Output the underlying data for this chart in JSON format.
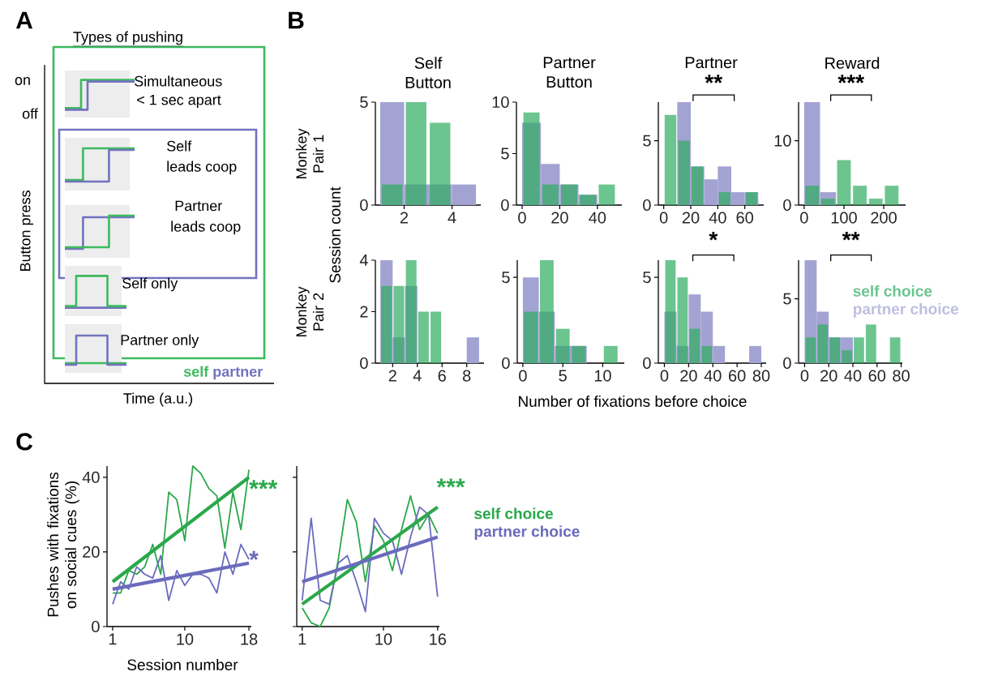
{
  "chart_data": [
    {
      "type": "other",
      "title": "Types of pushing",
      "xlabel": "Time (a.u.)",
      "ylabel": "Button press",
      "series": [
        {
          "name": "self",
          "color": "#3dba5e"
        },
        {
          "name": "partner",
          "color": "#7272c0"
        }
      ],
      "annotations": [
        "A",
        "on",
        "off",
        "Simultaneous",
        "< 1 sec apart",
        "Self",
        "leads coop",
        "Partner",
        "leads coop",
        "Self only",
        "Partner only"
      ]
    },
    {
      "type": "histogram",
      "title": "Self Button",
      "bins": [
        1,
        2,
        3,
        4,
        5
      ],
      "xlim": [
        0.8,
        5.2
      ],
      "ylim": [
        0,
        5
      ],
      "xticks": [
        2,
        4
      ],
      "yticks": [
        0,
        5
      ],
      "series": [
        {
          "color": "#6cc58f",
          "values": [
            1,
            5,
            4,
            0
          ]
        },
        {
          "color": "#a3a3d3",
          "values": [
            5,
            1,
            1,
            1
          ]
        }
      ],
      "annotations": [
        "B",
        "Monkey Pair 1",
        "Session count"
      ]
    },
    {
      "type": "histogram",
      "title": "Partner Button",
      "bins": [
        0,
        10,
        20,
        30,
        40,
        50
      ],
      "xlim": [
        -3,
        53
      ],
      "ylim": [
        0,
        10
      ],
      "xticks": [
        0,
        20,
        40
      ],
      "yticks": [
        0,
        5,
        10
      ],
      "series": [
        {
          "color": "#6cc58f",
          "values": [
            9,
            2,
            2,
            1,
            2
          ]
        },
        {
          "color": "#a3a3d3",
          "values": [
            8,
            4,
            2,
            1,
            0
          ]
        }
      ]
    },
    {
      "type": "histogram",
      "title": "Partner",
      "bins": [
        0,
        10,
        20,
        30,
        40,
        50,
        60,
        70
      ],
      "xlim": [
        -4,
        74
      ],
      "ylim": [
        0,
        8
      ],
      "xticks": [
        0,
        20,
        40,
        60
      ],
      "yticks": [
        0,
        5
      ],
      "series": [
        {
          "color": "#6cc58f",
          "values": [
            7,
            5,
            3,
            0,
            1,
            0,
            1
          ]
        },
        {
          "color": "#a3a3d3",
          "values": [
            0,
            8,
            3,
            2,
            3,
            1,
            1
          ]
        }
      ],
      "annotations": [
        "**"
      ]
    },
    {
      "type": "histogram",
      "title": "Reward",
      "bins": [
        0,
        40,
        80,
        120,
        160,
        200,
        240
      ],
      "xlim": [
        -14,
        255
      ],
      "ylim": [
        0,
        16
      ],
      "xticks": [
        0,
        100,
        200
      ],
      "yticks": [
        0,
        10
      ],
      "series": [
        {
          "color": "#6cc58f",
          "values": [
            3,
            1,
            7,
            3,
            1,
            3
          ]
        },
        {
          "color": "#a3a3d3",
          "values": [
            16,
            2,
            0,
            0,
            0,
            0
          ]
        }
      ],
      "annotations": [
        "***"
      ]
    },
    {
      "type": "histogram",
      "bins": [
        1,
        2,
        3,
        4,
        5,
        6,
        7,
        8,
        9
      ],
      "xlim": [
        0.6,
        9.4
      ],
      "ylim": [
        0,
        4
      ],
      "xticks": [
        2,
        4,
        6,
        8
      ],
      "yticks": [
        0,
        2,
        4
      ],
      "series": [
        {
          "color": "#6cc58f",
          "values": [
            3,
            3,
            4,
            2,
            2,
            0,
            0,
            0
          ]
        },
        {
          "color": "#a3a3d3",
          "values": [
            4,
            1,
            3,
            0,
            0,
            0,
            0,
            1
          ]
        }
      ],
      "annotations": [
        "Monkey Pair 2",
        "Number of fixations before choice"
      ]
    },
    {
      "type": "histogram",
      "bins": [
        0,
        2,
        4,
        6,
        8,
        10,
        12
      ],
      "xlim": [
        -0.7,
        12.7
      ],
      "ylim": [
        0,
        6
      ],
      "xticks": [
        0,
        5,
        10
      ],
      "yticks": [
        0,
        5
      ],
      "series": [
        {
          "color": "#6cc58f",
          "values": [
            3,
            6,
            2,
            1,
            0,
            1
          ]
        },
        {
          "color": "#a3a3d3",
          "values": [
            5,
            3,
            1,
            1,
            0,
            0
          ]
        }
      ]
    },
    {
      "type": "histogram",
      "bins": [
        0,
        10,
        20,
        30,
        40,
        50,
        60,
        70,
        80
      ],
      "xlim": [
        -5,
        84
      ],
      "ylim": [
        0,
        6
      ],
      "xticks": [
        0,
        20,
        40,
        60,
        80
      ],
      "yticks": [
        0,
        5
      ],
      "series": [
        {
          "color": "#6cc58f",
          "values": [
            6,
            5,
            2,
            1,
            0,
            0,
            0,
            0
          ]
        },
        {
          "color": "#a3a3d3",
          "values": [
            3,
            1,
            4,
            3,
            1,
            0,
            0,
            1
          ]
        }
      ],
      "annotations": [
        "*"
      ]
    },
    {
      "type": "histogram",
      "bins": [
        0,
        10,
        20,
        30,
        40,
        50,
        60,
        70,
        80
      ],
      "xlim": [
        -5,
        81
      ],
      "ylim": [
        0,
        8
      ],
      "xticks": [
        0,
        20,
        40,
        60,
        80
      ],
      "yticks": [
        0,
        5
      ],
      "legend": "top right",
      "series": [
        {
          "name": "self choice",
          "color": "#6cc58f",
          "values": [
            2,
            3,
            2,
            1,
            2,
            3,
            0,
            2
          ]
        },
        {
          "name": "partner choice",
          "color": "#a3a3d3",
          "values": [
            8,
            4,
            2,
            2,
            0,
            0,
            0,
            0
          ]
        }
      ],
      "annotations": [
        "**"
      ]
    },
    {
      "type": "line",
      "xlabel": "Session number",
      "ylabel": "Pushes with fixations on social cues (%)",
      "x": [
        1,
        2,
        3,
        4,
        5,
        6,
        7,
        8,
        9,
        10,
        11,
        12,
        13,
        14,
        15,
        16,
        17,
        18
      ],
      "xlim": [
        0.3,
        18.3
      ],
      "ylim": [
        0,
        43
      ],
      "xticks": [
        1,
        10,
        18
      ],
      "yticks": [
        0,
        20,
        40
      ],
      "marker": "none",
      "series": [
        {
          "color": "#2aa84a",
          "values": [
            9,
            9,
            15,
            14,
            16,
            22,
            14,
            36,
            34,
            23,
            43,
            41,
            37,
            35,
            21,
            36,
            26,
            42
          ]
        },
        {
          "color": "#6b6bbd",
          "values": [
            6,
            12,
            10,
            16,
            14,
            13,
            19,
            7,
            15,
            11,
            14,
            14,
            13,
            9,
            20,
            14,
            22,
            18
          ]
        },
        {
          "type": "line",
          "color": "#2aa84a",
          "x": [
            1,
            18
          ],
          "values": [
            12,
            40
          ]
        },
        {
          "type": "line",
          "color": "#6b6bbd",
          "x": [
            1,
            18
          ],
          "values": [
            10,
            17
          ]
        }
      ],
      "annotations": [
        "C",
        {
          "text": "***",
          "x": 18,
          "y": 37
        },
        {
          "text": "*",
          "x": 18,
          "y": 18
        }
      ]
    },
    {
      "type": "line",
      "x": [
        1,
        2,
        3,
        4,
        5,
        6,
        7,
        8,
        9,
        10,
        11,
        12,
        13,
        14,
        15,
        16
      ],
      "xlim": [
        0.4,
        16.2
      ],
      "ylim": [
        0,
        43
      ],
      "xticks": [
        1,
        10,
        16
      ],
      "yticks": [
        0,
        20,
        40
      ],
      "tick_labels": "x",
      "marker": "none",
      "legend": "right",
      "series": [
        {
          "name": "self choice",
          "color": "#2aa84a",
          "values": [
            5,
            1,
            0,
            5,
            18,
            34,
            28,
            12,
            27,
            23,
            15,
            26,
            35,
            26,
            30,
            25
          ]
        },
        {
          "name": "partner choice",
          "color": "#6b6bbd",
          "values": [
            7,
            29,
            7,
            6,
            17,
            19,
            12,
            4,
            29,
            25,
            23,
            14,
            24,
            32,
            30,
            8
          ]
        },
        {
          "type": "line",
          "color": "#2aa84a",
          "x": [
            1,
            16
          ],
          "values": [
            6,
            32
          ]
        },
        {
          "type": "line",
          "color": "#6b6bbd",
          "x": [
            1,
            16
          ],
          "values": [
            12,
            24
          ]
        }
      ],
      "annotations": [
        "***"
      ]
    }
  ]
}
